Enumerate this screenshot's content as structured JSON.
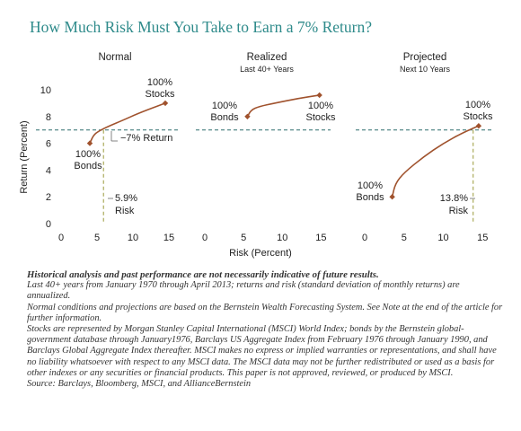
{
  "title": "How Much Risk Must You Take to Earn a 7% Return?",
  "colors": {
    "title": "#2f8b8b",
    "line": "#a0522d",
    "marker": "#a0522d",
    "target": "#2f6f6f",
    "risk": "#9a9a3a"
  },
  "chart_data": [
    {
      "type": "line",
      "title": "Normal",
      "subtitle": "",
      "xlim": [
        0,
        16
      ],
      "ylim": [
        0,
        10
      ],
      "xticks": [
        0,
        5,
        10,
        15
      ],
      "yticks": [
        0,
        2,
        4,
        6,
        8,
        10
      ],
      "ylabel": "Return (Percent)",
      "endpoints": [
        {
          "x": 4.0,
          "y": 6.0,
          "label": [
            "100%",
            "Bonds"
          ]
        },
        {
          "x": 14.5,
          "y": 9.0,
          "label": [
            "100%",
            "Stocks"
          ]
        }
      ],
      "curve": [
        [
          4.0,
          6.0
        ],
        [
          4.5,
          6.6
        ],
        [
          5.2,
          6.9
        ],
        [
          6.5,
          7.25
        ],
        [
          8.5,
          7.7
        ],
        [
          11,
          8.3
        ],
        [
          14.5,
          9.0
        ]
      ],
      "target": {
        "y": 7,
        "label": "7% Return"
      },
      "risk_marker": {
        "x": 5.9,
        "label": [
          "5.9%",
          "Risk"
        ]
      }
    },
    {
      "type": "line",
      "title": "Realized",
      "subtitle": "Last 40+ Years",
      "xlim": [
        0,
        16
      ],
      "ylim": [
        0,
        10
      ],
      "xticks": [
        0,
        5,
        10,
        15
      ],
      "yticks": [],
      "endpoints": [
        {
          "x": 5.5,
          "y": 8.0,
          "label": [
            "100%",
            "Bonds"
          ]
        },
        {
          "x": 14.8,
          "y": 9.6,
          "label": [
            "100%",
            "Stocks"
          ]
        }
      ],
      "curve": [
        [
          5.5,
          8.0
        ],
        [
          6.0,
          8.5
        ],
        [
          7.0,
          8.75
        ],
        [
          9.0,
          9.0
        ],
        [
          12,
          9.35
        ],
        [
          14.8,
          9.6
        ]
      ],
      "target": {
        "y": 7,
        "label": ""
      },
      "risk_marker": null
    },
    {
      "type": "line",
      "title": "Projected",
      "subtitle": "Next 10 Years",
      "xlim": [
        0,
        16
      ],
      "ylim": [
        0,
        10
      ],
      "xticks": [
        0,
        5,
        10,
        15
      ],
      "yticks": [],
      "endpoints": [
        {
          "x": 3.5,
          "y": 2.0,
          "label": [
            "100%",
            "Bonds"
          ]
        },
        {
          "x": 14.5,
          "y": 7.3,
          "label": [
            "100%",
            "Stocks"
          ]
        }
      ],
      "curve": [
        [
          3.5,
          2.0
        ],
        [
          3.9,
          3.0
        ],
        [
          5.0,
          3.8
        ],
        [
          7.5,
          5.0
        ],
        [
          10,
          6.0
        ],
        [
          12.5,
          6.8
        ],
        [
          14.5,
          7.3
        ]
      ],
      "target": {
        "y": 7,
        "label": ""
      },
      "risk_marker": {
        "x": 13.8,
        "label": [
          "13.8%",
          "Risk"
        ]
      }
    }
  ],
  "xlabel": "Risk (Percent)",
  "notes": {
    "bold": "Historical analysis and past performance are not necessarily indicative of future results.",
    "lines": [
      "Last 40+ years from January 1970 through April 2013; returns and risk (standard deviation of monthly returns) are annualized.",
      "Normal conditions and projections are based on the Bernstein Wealth Forecasting System. See Note at the end of the article for further information.",
      "Stocks are represented by Morgan Stanley Capital International (MSCI) World Index; bonds by the Bernstein global-government database through January1976, Barclays US Aggregate Index from February 1976 through January 1990, and Barclays Global Aggregate Index thereafter.  MSCI makes no express or implied warranties or representations, and shall have no liability whatsoever with respect to any MSCI data. The MSCI data may not be further redistributed or used as a basis for other indexes or any securities or financial products. This paper is not approved, reviewed, or produced by MSCI.",
      "Source: Barclays, Bloomberg, MSCI, and AllianceBernstein"
    ]
  }
}
